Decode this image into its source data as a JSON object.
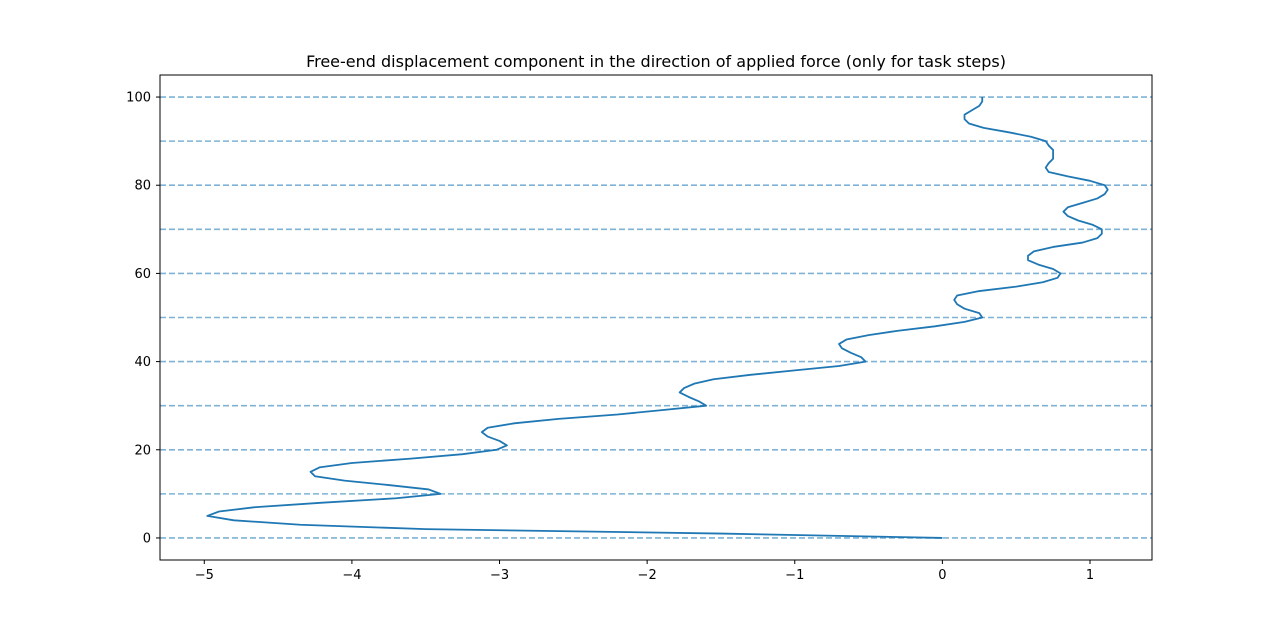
{
  "chart_data": {
    "type": "line",
    "title": "Free-end displacement component in the direction of applied force (only for task steps)",
    "xlabel": "",
    "ylabel": "",
    "xlim": [
      -5.3,
      1.42
    ],
    "ylim": [
      -5,
      105
    ],
    "xticks": [
      -5,
      -4,
      -3,
      -2,
      -1,
      0,
      1
    ],
    "xtick_labels": [
      "−5",
      "−4",
      "−3",
      "−2",
      "−1",
      "0",
      "1"
    ],
    "yticks": [
      0,
      20,
      40,
      60,
      80,
      100
    ],
    "ytick_labels": [
      "0",
      "20",
      "40",
      "60",
      "80",
      "100"
    ],
    "grid": false,
    "reference_lines": {
      "orientation": "horizontal",
      "style": "dashed",
      "color": "#7fb2d6",
      "y": [
        0,
        10,
        20,
        30,
        40,
        50,
        60,
        70,
        80,
        90,
        100
      ]
    },
    "series": [
      {
        "color": "#1f77b4",
        "points": [
          [
            0.0,
            0
          ],
          [
            -1.5,
            1
          ],
          [
            -3.5,
            2
          ],
          [
            -4.35,
            3
          ],
          [
            -4.8,
            4
          ],
          [
            -4.98,
            5
          ],
          [
            -4.9,
            6
          ],
          [
            -4.65,
            7
          ],
          [
            -4.2,
            8
          ],
          [
            -3.7,
            9
          ],
          [
            -3.4,
            10
          ],
          [
            -3.48,
            11
          ],
          [
            -3.75,
            12
          ],
          [
            -4.05,
            13
          ],
          [
            -4.25,
            14
          ],
          [
            -4.28,
            15
          ],
          [
            -4.22,
            16
          ],
          [
            -4.0,
            17
          ],
          [
            -3.6,
            18
          ],
          [
            -3.25,
            19
          ],
          [
            -3.02,
            20
          ],
          [
            -2.95,
            21
          ],
          [
            -3.0,
            22
          ],
          [
            -3.08,
            23
          ],
          [
            -3.12,
            24
          ],
          [
            -3.08,
            25
          ],
          [
            -2.9,
            26
          ],
          [
            -2.6,
            27
          ],
          [
            -2.2,
            28
          ],
          [
            -1.9,
            29
          ],
          [
            -1.6,
            30
          ],
          [
            -1.65,
            31
          ],
          [
            -1.72,
            32
          ],
          [
            -1.78,
            33
          ],
          [
            -1.75,
            34
          ],
          [
            -1.68,
            35
          ],
          [
            -1.55,
            36
          ],
          [
            -1.3,
            37
          ],
          [
            -1.0,
            38
          ],
          [
            -0.7,
            39
          ],
          [
            -0.52,
            40
          ],
          [
            -0.55,
            41
          ],
          [
            -0.62,
            42
          ],
          [
            -0.68,
            43
          ],
          [
            -0.7,
            44
          ],
          [
            -0.65,
            45
          ],
          [
            -0.5,
            46
          ],
          [
            -0.3,
            47
          ],
          [
            -0.05,
            48
          ],
          [
            0.15,
            49
          ],
          [
            0.27,
            50
          ],
          [
            0.25,
            51
          ],
          [
            0.15,
            52
          ],
          [
            0.1,
            53
          ],
          [
            0.08,
            54
          ],
          [
            0.1,
            55
          ],
          [
            0.25,
            56
          ],
          [
            0.5,
            57
          ],
          [
            0.68,
            58
          ],
          [
            0.78,
            59
          ],
          [
            0.8,
            60
          ],
          [
            0.75,
            61
          ],
          [
            0.65,
            62
          ],
          [
            0.58,
            63
          ],
          [
            0.58,
            64
          ],
          [
            0.62,
            65
          ],
          [
            0.75,
            66
          ],
          [
            0.95,
            67
          ],
          [
            1.05,
            68
          ],
          [
            1.08,
            69
          ],
          [
            1.08,
            70
          ],
          [
            1.02,
            71
          ],
          [
            0.92,
            72
          ],
          [
            0.85,
            73
          ],
          [
            0.82,
            74
          ],
          [
            0.85,
            75
          ],
          [
            0.95,
            76
          ],
          [
            1.05,
            77
          ],
          [
            1.1,
            78
          ],
          [
            1.12,
            79
          ],
          [
            1.1,
            80
          ],
          [
            1.0,
            81
          ],
          [
            0.85,
            82
          ],
          [
            0.72,
            83
          ],
          [
            0.7,
            84
          ],
          [
            0.72,
            85
          ],
          [
            0.75,
            86
          ],
          [
            0.75,
            87
          ],
          [
            0.75,
            88
          ],
          [
            0.72,
            89
          ],
          [
            0.7,
            90
          ],
          [
            0.6,
            91
          ],
          [
            0.45,
            92
          ],
          [
            0.28,
            93
          ],
          [
            0.18,
            94
          ],
          [
            0.15,
            95
          ],
          [
            0.15,
            96
          ],
          [
            0.2,
            97
          ],
          [
            0.25,
            98
          ],
          [
            0.27,
            99
          ],
          [
            0.27,
            100
          ]
        ]
      }
    ]
  }
}
